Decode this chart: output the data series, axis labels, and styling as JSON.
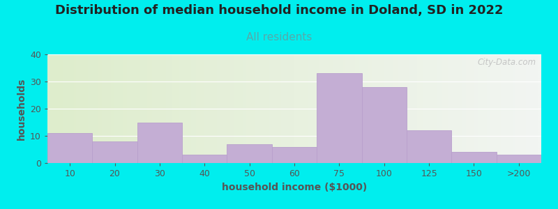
{
  "title": "Distribution of median household income in Doland, SD in 2022",
  "subtitle": "All residents",
  "xlabel": "household income ($1000)",
  "ylabel": "households",
  "background_outer": "#00EEEE",
  "bar_color": "#c4aed4",
  "bar_edge_color": "#b8a0cc",
  "categories": [
    "10",
    "20",
    "30",
    "40",
    "50",
    "60",
    "75",
    "100",
    "125",
    "150",
    ">200"
  ],
  "values": [
    11,
    8,
    15,
    3,
    7,
    6,
    33,
    28,
    12,
    4,
    3
  ],
  "edges": [
    0,
    10,
    20,
    30,
    40,
    50,
    60,
    75,
    100,
    125,
    150,
    200
  ],
  "ylim": [
    0,
    40
  ],
  "yticks": [
    0,
    10,
    20,
    30,
    40
  ],
  "watermark": "City-Data.com",
  "title_fontsize": 13,
  "subtitle_fontsize": 11,
  "axis_label_fontsize": 10,
  "tick_fontsize": 9,
  "subtitle_color": "#55aaaa",
  "title_color": "#222222",
  "label_color": "#555555"
}
